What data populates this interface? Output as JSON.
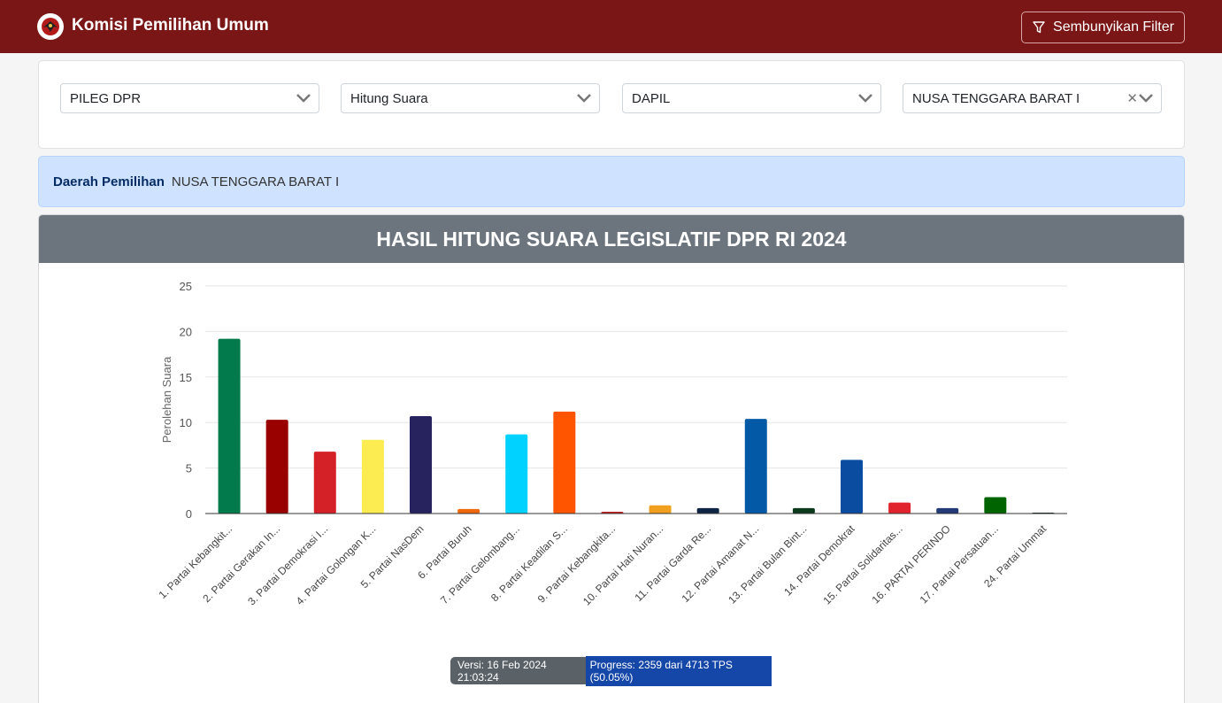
{
  "header": {
    "brand": "Komisi Pemilihan Umum",
    "filter_button": "Sembunyikan Filter",
    "background": "#7a1616"
  },
  "filters": {
    "election": "PILEG DPR",
    "mode": "Hitung Suara",
    "level": "DAPIL",
    "region": "NUSA TENGGARA BARAT I"
  },
  "info": {
    "label": "Daerah Pemilihan",
    "value": "NUSA TENGGARA BARAT I"
  },
  "chart_title": "HASIL HITUNG SUARA LEGISLATIF DPR RI 2024",
  "chart_data": {
    "type": "bar",
    "title": "HASIL HITUNG SUARA LEGISLATIF DPR RI 2024",
    "ylabel": "Perolehan Suara",
    "xlabel": "",
    "ylim": [
      0,
      25
    ],
    "yticks": [
      0,
      5,
      10,
      15,
      20,
      25
    ],
    "grid": true,
    "categories": [
      "1. Partai Kebangkit...",
      "2. Partai Gerakan In...",
      "3. Partai Demokrasi I...",
      "4. Partai Golongan K...",
      "5. Partai NasDem",
      "6. Partai Buruh",
      "7. Partai Gelombang...",
      "8. Partai Keadilan S...",
      "9. Partai Kebangkita...",
      "10. Partai Hati Nuran...",
      "11. Partai Garda Re...",
      "12. Partai Amanat N...",
      "13. Partai Bulan Bint...",
      "14. Partai Demokrat",
      "15. Partai Solidaritas...",
      "16. PARTAI PERINDO",
      "17. Partai Persatuan...",
      "24. Partai Ummat"
    ],
    "values": [
      19.2,
      10.3,
      6.8,
      8.1,
      10.7,
      0.5,
      8.7,
      11.2,
      0.2,
      0.9,
      0.6,
      10.4,
      0.6,
      5.9,
      1.2,
      0.6,
      1.8,
      0.1
    ],
    "colors": [
      "#027a4c",
      "#990000",
      "#d42128",
      "#fdec51",
      "#27235e",
      "#f1690f",
      "#00d2ff",
      "#ff5500",
      "#c21c20",
      "#f0a01e",
      "#0f2544",
      "#0459a6",
      "#0c3a1c",
      "#0a4da0",
      "#e1232d",
      "#233a76",
      "#006400",
      "#0b1e14"
    ]
  },
  "status": {
    "version": "Versi: 16 Feb 2024 21:03:24",
    "progress": "Progress: 2359 dari 4713 TPS (50.05%)"
  }
}
